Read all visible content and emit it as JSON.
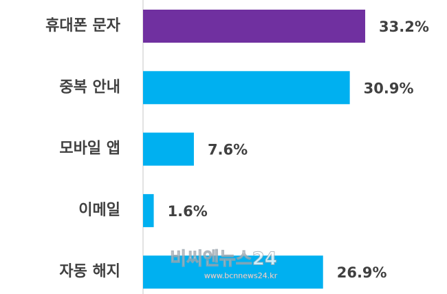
{
  "chart_data": {
    "type": "barh",
    "categories": [
      "휴대폰 문자",
      "중복 안내",
      "모바일 앱",
      "이메일",
      "자동 해지"
    ],
    "values": [
      33.2,
      30.9,
      7.6,
      1.6,
      26.9
    ],
    "value_labels": [
      "33.2%",
      "30.9%",
      "7.6%",
      "1.6%",
      "26.9%"
    ],
    "colors": [
      "#7030a0",
      "#00b0f0",
      "#00b0f0",
      "#00b0f0",
      "#00b0f0"
    ],
    "annotations": [
      "비씨엔뉴스24",
      "www.bcnnews24.kr"
    ]
  }
}
